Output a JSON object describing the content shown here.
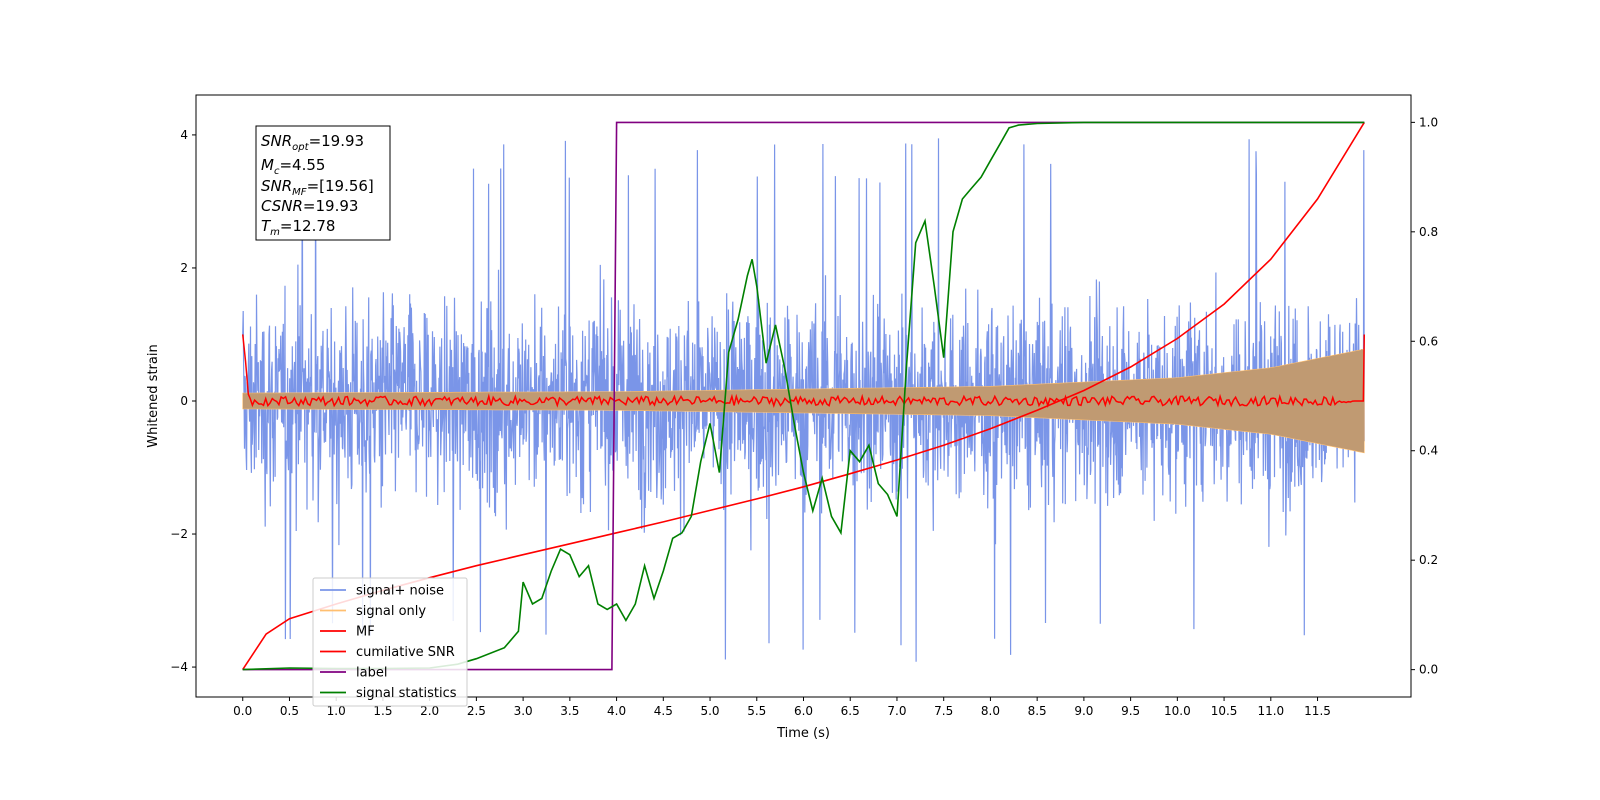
{
  "chart_data": {
    "type": "line",
    "xlabel": "Time (s)",
    "ylabel": "Whitened strain",
    "xlim": [
      -0.5,
      12.5
    ],
    "ylim": [
      -4.45,
      4.6
    ],
    "y2lim": [
      -0.05,
      1.05
    ],
    "x_ticks": [
      "0.0",
      "0.5",
      "1.0",
      "1.5",
      "2.0",
      "2.5",
      "3.0",
      "3.5",
      "4.0",
      "4.5",
      "5.0",
      "5.5",
      "6.0",
      "6.5",
      "7.0",
      "7.5",
      "8.0",
      "8.5",
      "9.0",
      "9.5",
      "10.0",
      "10.5",
      "11.0",
      "11.5"
    ],
    "y_ticks": [
      "−4",
      "−2",
      "0",
      "2",
      "4"
    ],
    "y2_ticks": [
      "0.0",
      "0.2",
      "0.4",
      "0.6",
      "0.8",
      "1.0"
    ],
    "annotation": {
      "snr_opt": "=19.93",
      "mc": "=4.55",
      "snr_mf": "=[19.56]",
      "csnr": "=19.93",
      "tm": "=12.78"
    },
    "legend_position": "lower-left",
    "series": [
      {
        "name": "signal+ noise",
        "color": "#7a95e8",
        "axis": "left",
        "description_values": "noise amplitude ~±2.5, peaks to ±4",
        "x_range": [
          0,
          12
        ]
      },
      {
        "name": "signal only",
        "color": "#ffbf70",
        "axis": "left",
        "envelope": [
          [
            0,
            0.12
          ],
          [
            4,
            0.14
          ],
          [
            8,
            0.22
          ],
          [
            10,
            0.35
          ],
          [
            11,
            0.5
          ],
          [
            12,
            0.78
          ]
        ]
      },
      {
        "name": "MF",
        "color": "#ff0000",
        "axis": "left",
        "x": [
          0,
          0.02,
          0.05,
          0.1,
          12,
          12.05
        ],
        "y": [
          1.0,
          0.7,
          0.1,
          0.0,
          0.0,
          1.0
        ]
      },
      {
        "name": "cumilative SNR",
        "color": "#ff0000",
        "axis": "right",
        "x": [
          0,
          0.25,
          0.5,
          1,
          1.5,
          2,
          2.5,
          3,
          3.5,
          4,
          4.5,
          5,
          5.5,
          6,
          6.5,
          7,
          7.5,
          8,
          8.5,
          9,
          9.5,
          10,
          10.5,
          11,
          11.5,
          12
        ],
        "y": [
          0.0,
          0.065,
          0.093,
          0.12,
          0.145,
          0.168,
          0.19,
          0.21,
          0.23,
          0.25,
          0.27,
          0.291,
          0.312,
          0.334,
          0.358,
          0.383,
          0.41,
          0.44,
          0.474,
          0.51,
          0.553,
          0.605,
          0.668,
          0.75,
          0.86,
          1.0
        ]
      },
      {
        "name": "label",
        "color": "#800080",
        "axis": "right",
        "x": [
          0,
          3.95,
          4.0,
          12
        ],
        "y": [
          0,
          0,
          1,
          1
        ]
      },
      {
        "name": "signal statistics",
        "color": "#008000",
        "axis": "right",
        "x": [
          0,
          0.5,
          1,
          1.5,
          2,
          2.3,
          2.5,
          2.8,
          2.95,
          3.0,
          3.1,
          3.2,
          3.3,
          3.4,
          3.5,
          3.6,
          3.7,
          3.8,
          3.9,
          4.0,
          4.1,
          4.2,
          4.3,
          4.4,
          4.5,
          4.6,
          4.7,
          4.8,
          4.9,
          5.0,
          5.1,
          5.2,
          5.3,
          5.4,
          5.45,
          5.5,
          5.6,
          5.7,
          5.8,
          5.9,
          6.0,
          6.1,
          6.2,
          6.3,
          6.4,
          6.5,
          6.6,
          6.7,
          6.8,
          6.9,
          7.0,
          7.1,
          7.2,
          7.3,
          7.4,
          7.5,
          7.6,
          7.7,
          7.8,
          7.9,
          8.0,
          8.1,
          8.2,
          8.3,
          8.5,
          9,
          9.5,
          10,
          11,
          12
        ],
        "y": [
          0,
          0.003,
          0.002,
          0.002,
          0.003,
          0.01,
          0.02,
          0.04,
          0.07,
          0.16,
          0.12,
          0.13,
          0.18,
          0.22,
          0.21,
          0.17,
          0.19,
          0.12,
          0.11,
          0.12,
          0.09,
          0.12,
          0.19,
          0.13,
          0.18,
          0.24,
          0.25,
          0.28,
          0.38,
          0.45,
          0.36,
          0.58,
          0.64,
          0.72,
          0.75,
          0.7,
          0.56,
          0.63,
          0.55,
          0.45,
          0.36,
          0.29,
          0.35,
          0.28,
          0.25,
          0.4,
          0.38,
          0.41,
          0.34,
          0.32,
          0.28,
          0.55,
          0.78,
          0.82,
          0.7,
          0.57,
          0.8,
          0.86,
          0.88,
          0.9,
          0.93,
          0.96,
          0.99,
          0.995,
          0.998,
          1.0,
          1.0,
          1.0,
          1.0,
          1.0
        ]
      }
    ]
  }
}
